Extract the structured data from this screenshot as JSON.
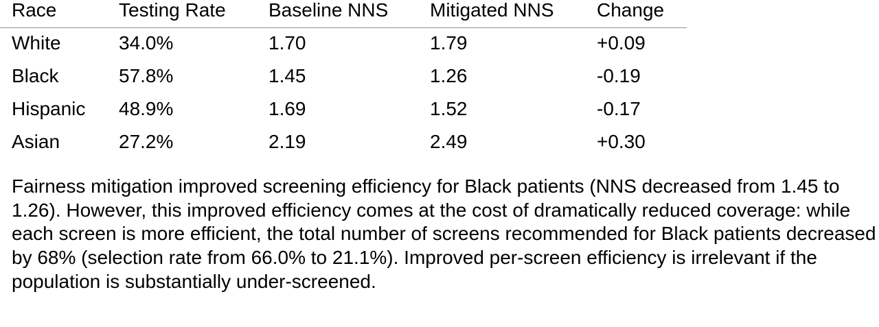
{
  "table": {
    "headers": [
      "Race",
      "Testing Rate",
      "Baseline NNS",
      "Mitigated NNS",
      "Change"
    ],
    "rows": [
      [
        "White",
        "34.0%",
        "1.70",
        "1.79",
        "+0.09"
      ],
      [
        "Black",
        "57.8%",
        "1.45",
        "1.26",
        "-0.19"
      ],
      [
        "Hispanic",
        "48.9%",
        "1.69",
        "1.52",
        "-0.17"
      ],
      [
        "Asian",
        "27.2%",
        "2.19",
        "2.49",
        "+0.30"
      ]
    ]
  },
  "note": "Fairness mitigation improved screening efficiency for Black patients (NNS decreased from 1.45 to 1.26). However, this improved efficiency comes at the cost of dramatically reduced coverage: while each screen is more efficient, the total number of screens recommended for Black patients decreased by 68% (selection rate from 66.0% to 21.1%). Improved per-screen efficiency is irrelevant if the population is substantially under-screened."
}
